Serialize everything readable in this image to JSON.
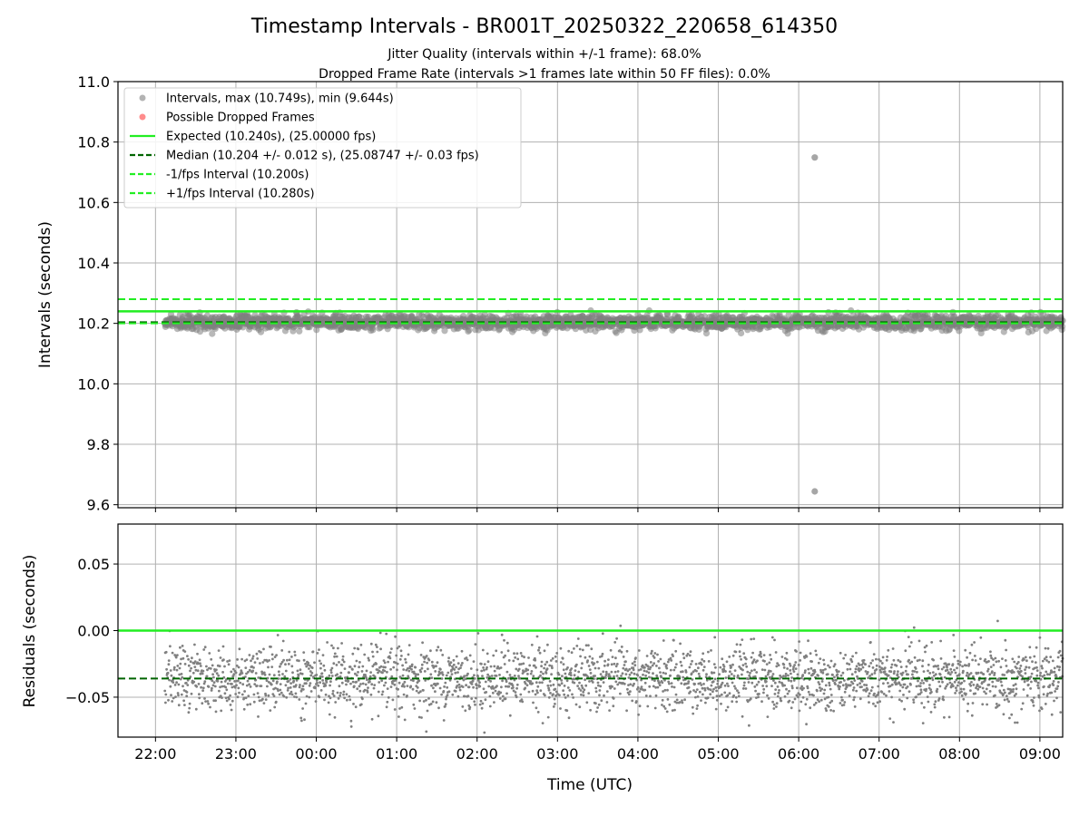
{
  "chart_data": {
    "title": "Timestamp Intervals - BR001T_20250322_220658_614350",
    "subtitles": [
      "Jitter Quality (intervals within +/-1 frame): 68.0%",
      "Dropped Frame Rate (intervals >1 frames late within 50 FF files): 0.0%"
    ],
    "xlabel": "Time (UTC)",
    "x_ticks": [
      "22:00",
      "23:00",
      "00:00",
      "01:00",
      "02:00",
      "03:00",
      "04:00",
      "05:00",
      "06:00",
      "07:00",
      "08:00",
      "09:00"
    ],
    "x_start": "2025-03-22T21:32",
    "x_end": "2025-03-23T09:17",
    "data_start": "2025-03-22T22:07",
    "data_end": "2025-03-23T09:17",
    "grid": true,
    "top_panel": {
      "type": "scatter",
      "ylabel": "Intervals (seconds)",
      "ylim": [
        9.59,
        11.0
      ],
      "y_ticks": [
        "9.6",
        "9.8",
        "10.0",
        "10.2",
        "10.4",
        "10.6",
        "10.8",
        "11.0"
      ],
      "legend_position": "top-left",
      "legend": [
        {
          "label": "Intervals, max (10.749s), min (9.644s)",
          "marker": "dot",
          "color": "#808080"
        },
        {
          "label": "Possible Dropped Frames",
          "marker": "dot",
          "color": "#ff4040"
        },
        {
          "label": "Expected (10.240s), (25.00000 fps)",
          "marker": "solid",
          "color": "#22ee22"
        },
        {
          "label": "Median (10.204 +/- 0.012 s), (25.08747 +/- 0.03 fps)",
          "marker": "dashed",
          "color": "#006400"
        },
        {
          "label": "-1/fps Interval (10.200s)",
          "marker": "dashed",
          "color": "#22ee22"
        },
        {
          "label": "+1/fps Interval (10.280s)",
          "marker": "dashed",
          "color": "#22ee22"
        }
      ],
      "interval_median": 10.204,
      "interval_spread": 0.012,
      "max_interval": 10.749,
      "min_interval": 9.644,
      "max_time": "2025-03-23T06:12",
      "min_time": "2025-03-23T06:12",
      "expected": 10.24,
      "lower_bound": 10.2,
      "upper_bound": 10.28
    },
    "bottom_panel": {
      "type": "scatter",
      "ylabel": "Residuals (seconds)",
      "ylim": [
        -0.08,
        0.08
      ],
      "y_ticks": [
        "0.05",
        "0.00",
        "−0.05"
      ],
      "expected_line": 0.0,
      "median_line": -0.036,
      "residual_median": -0.036,
      "residual_spread": 0.012
    },
    "colors": {
      "points": "#808080",
      "expected": "#22ee22",
      "median": "#006400",
      "grid": "#b0b0b0"
    }
  }
}
